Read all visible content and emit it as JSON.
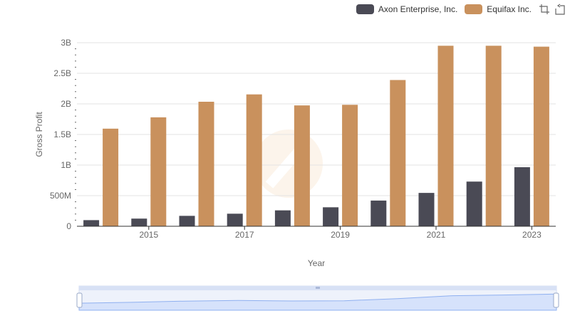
{
  "chart_data": {
    "type": "bar",
    "x": [
      2014,
      2015,
      2016,
      2017,
      2018,
      2019,
      2020,
      2021,
      2022,
      2023
    ],
    "xticks": [
      "2015",
      "2017",
      "2019",
      "2021",
      "2023"
    ],
    "yticks": [
      "0",
      "500M",
      "1B",
      "1.5B",
      "2B",
      "2.5B",
      "3B"
    ],
    "ylim": [
      0,
      3000000000
    ],
    "xlabel": "Year",
    "ylabel": "Gross Profit",
    "legend_position": "top-right",
    "grid": true,
    "series": [
      {
        "name": "Axon Enterprise, Inc.",
        "color": "#4a4a55",
        "values": [
          100000000,
          125000000,
          170000000,
          205000000,
          260000000,
          310000000,
          420000000,
          545000000,
          730000000,
          965000000
        ]
      },
      {
        "name": "Equifax Inc.",
        "color": "#c9915d",
        "values": [
          1595000000,
          1780000000,
          2035000000,
          2155000000,
          1975000000,
          1985000000,
          2390000000,
          2950000000,
          2950000000,
          2935000000
        ]
      }
    ]
  },
  "toolbox": {
    "icons": [
      "zoom-icon",
      "restore-icon"
    ]
  }
}
